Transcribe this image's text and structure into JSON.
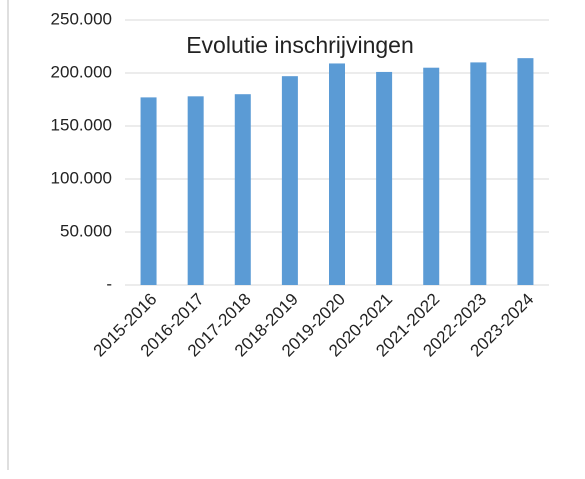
{
  "chart_data": {
    "type": "bar",
    "title": "Evolutie inschrijvingen",
    "categories": [
      "2015-2016",
      "2016-2017",
      "2017-2018",
      "2018-2019",
      "2019-2020",
      "2020-2021",
      "2021-2022",
      "2022-2023",
      "2023-2024"
    ],
    "values": [
      177000,
      178000,
      180000,
      197000,
      209000,
      201000,
      205000,
      210000,
      214000
    ],
    "color": "#5b9bd5",
    "ylim": [
      0,
      250000
    ],
    "yticks": [
      {
        "value": 0,
        "label": "-"
      },
      {
        "value": 50000,
        "label": "50.000"
      },
      {
        "value": 100000,
        "label": "100.000"
      },
      {
        "value": 150000,
        "label": "150.000"
      },
      {
        "value": 200000,
        "label": "200.000"
      },
      {
        "value": 250000,
        "label": "250.000"
      }
    ],
    "grid": true
  }
}
